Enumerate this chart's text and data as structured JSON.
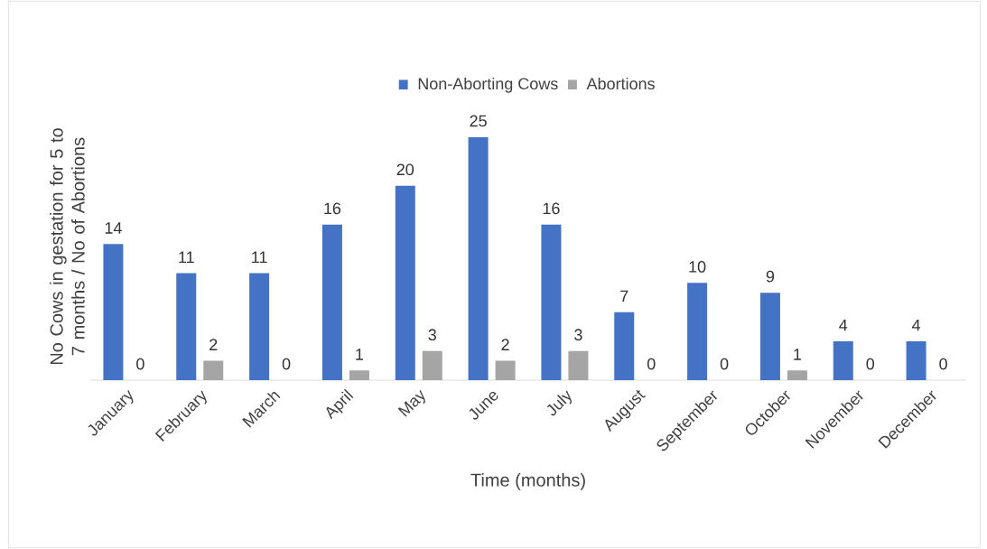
{
  "chart_data": {
    "type": "bar",
    "xlabel": "Time (months)",
    "ylabel": "No Cows in gestation for 5 to 7 months / No of Abortions",
    "categories": [
      "January",
      "February",
      "March",
      "April",
      "May",
      "June",
      "July",
      "August",
      "September",
      "October",
      "November",
      "December"
    ],
    "series": [
      {
        "name": "Non-Aborting Cows",
        "color": "#4472c4",
        "values": [
          14,
          11,
          11,
          16,
          20,
          25,
          16,
          7,
          10,
          9,
          4,
          4
        ]
      },
      {
        "name": "Abortions",
        "color": "#a5a5a5",
        "values": [
          0,
          2,
          0,
          1,
          3,
          2,
          3,
          0,
          0,
          1,
          0,
          0
        ]
      }
    ],
    "data_labels": true,
    "legend": "top"
  }
}
